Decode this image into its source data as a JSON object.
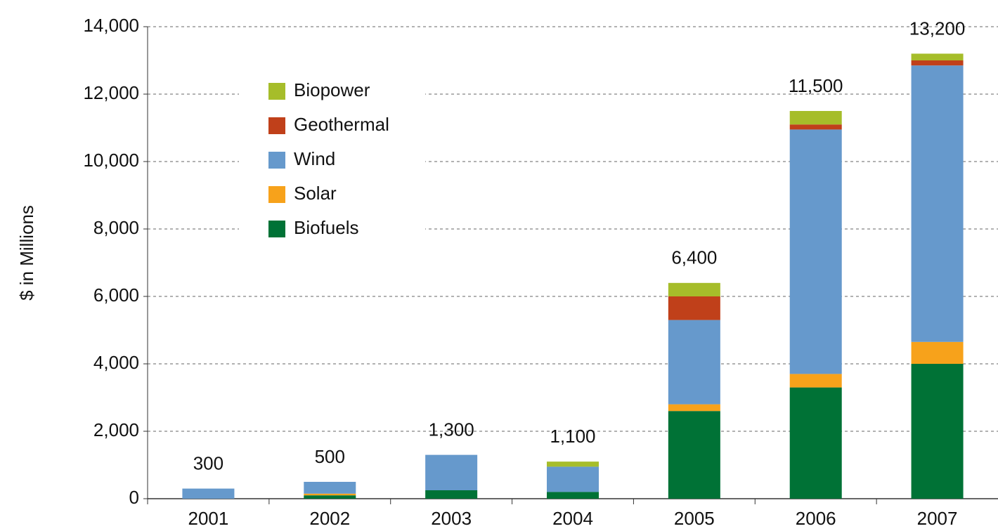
{
  "chart_data": {
    "type": "stacked_bar",
    "y_label": "$ in Millions",
    "categories": [
      "2001",
      "2002",
      "2003",
      "2004",
      "2005",
      "2006",
      "2007"
    ],
    "series": [
      {
        "name": "Biofuels",
        "color": "#007236",
        "values": [
          0,
          100,
          250,
          200,
          2600,
          3300,
          4000
        ]
      },
      {
        "name": "Solar",
        "color": "#f7a21b",
        "values": [
          0,
          50,
          0,
          0,
          200,
          400,
          650
        ]
      },
      {
        "name": "Wind",
        "color": "#6699cc",
        "values": [
          300,
          350,
          1050,
          750,
          2500,
          7250,
          8200
        ]
      },
      {
        "name": "Geothermal",
        "color": "#c0401a",
        "values": [
          0,
          0,
          0,
          0,
          700,
          150,
          150
        ]
      },
      {
        "name": "Biopower",
        "color": "#a6bd2a",
        "values": [
          0,
          0,
          0,
          150,
          400,
          400,
          200
        ]
      }
    ],
    "totals": [
      300,
      500,
      1300,
      1100,
      6400,
      11500,
      13200
    ],
    "total_labels": [
      "300",
      "500",
      "1,300",
      "1,100",
      "6,400",
      "11,500",
      "13,200"
    ],
    "ylim": [
      0,
      14000
    ],
    "yticks": [
      0,
      {
        "value": 2000,
        "label": "2,000"
      },
      {
        "value": 4000,
        "label": "4,000"
      },
      {
        "value": 6000,
        "label": "6,000"
      },
      {
        "value": 8000,
        "label": "8,000"
      },
      {
        "value": 10000,
        "label": "10,000"
      },
      {
        "value": 12000,
        "label": "12,000"
      },
      {
        "value": 14000,
        "label": "14,000"
      }
    ],
    "grid": true,
    "legend": "upper left"
  }
}
